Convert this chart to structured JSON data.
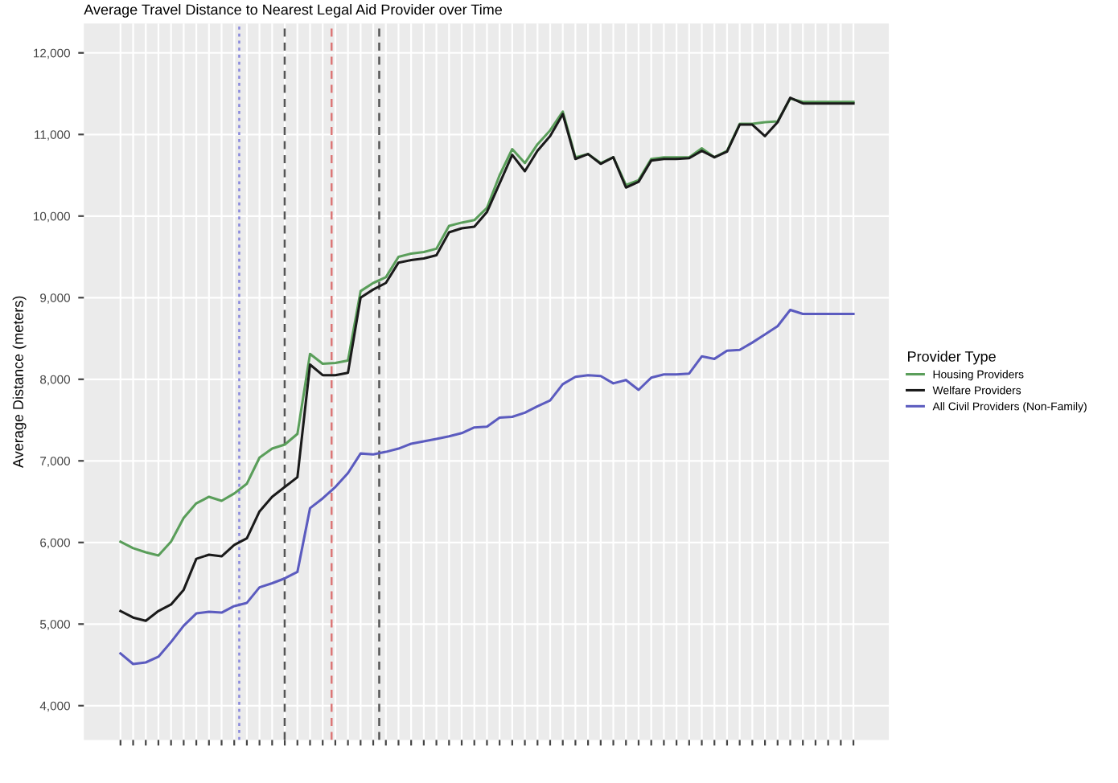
{
  "chart_data": {
    "type": "line",
    "title": "Average Travel Distance to Nearest Legal Aid Provider over Time",
    "ylabel": "Average Distance (meters)",
    "legend_title": "Provider Type",
    "categories": [
      null,
      null,
      null,
      null,
      null,
      null,
      null,
      null,
      null,
      null,
      null,
      null,
      null,
      null,
      null,
      null,
      null,
      null,
      null,
      null,
      null,
      null,
      null,
      null,
      null,
      null,
      null,
      null,
      null,
      null,
      null,
      null,
      null,
      null,
      null,
      null,
      null,
      null,
      null,
      null,
      null,
      null,
      null,
      null,
      null,
      null,
      null,
      null,
      null,
      null,
      null,
      null,
      null,
      null,
      null,
      null,
      null,
      null,
      null
    ],
    "ylim": [
      3580,
      12360
    ],
    "yticks": [
      {
        "value": 4000,
        "label": "4,000"
      },
      {
        "value": 5000,
        "label": "5,000"
      },
      {
        "value": 6000,
        "label": "6,000"
      },
      {
        "value": 7000,
        "label": "7,000"
      },
      {
        "value": 8000,
        "label": "8,000"
      },
      {
        "value": 9000,
        "label": "9,000"
      },
      {
        "value": 10000,
        "label": "10,000"
      },
      {
        "value": 11000,
        "label": "11,000"
      },
      {
        "value": 12000,
        "label": "12,000"
      }
    ],
    "grid": true,
    "legend": "right",
    "line_style": "solid",
    "marker": "none",
    "series": [
      {
        "name": "Housing Providers",
        "color": "#5a9e5a",
        "values": [
          6010,
          5930,
          5880,
          5840,
          6010,
          6300,
          6480,
          6560,
          6510,
          6600,
          6720,
          7040,
          7150,
          7200,
          7330,
          8310,
          8190,
          8200,
          8230,
          9080,
          9180,
          9250,
          9500,
          9540,
          9560,
          9600,
          9880,
          9920,
          9950,
          10100,
          10500,
          10820,
          10650,
          10880,
          11050,
          11280,
          10720,
          10760,
          10650,
          10720,
          10380,
          10440,
          10700,
          10720,
          10720,
          10720,
          10830,
          10720,
          10800,
          11130,
          11130,
          11150,
          11160,
          11440,
          11400,
          11400,
          11400,
          11400,
          11400
        ]
      },
      {
        "name": "Welfare Providers",
        "color": "#1a1a1a",
        "values": [
          5160,
          5080,
          5040,
          5160,
          5240,
          5420,
          5800,
          5850,
          5830,
          5970,
          6050,
          6380,
          6560,
          6680,
          6800,
          8180,
          8050,
          8050,
          8080,
          9000,
          9100,
          9180,
          9430,
          9460,
          9480,
          9520,
          9800,
          9850,
          9870,
          10050,
          10400,
          10750,
          10550,
          10800,
          10980,
          11250,
          10700,
          10760,
          10640,
          10720,
          10350,
          10420,
          10680,
          10700,
          10700,
          10710,
          10800,
          10720,
          10790,
          11120,
          11120,
          10980,
          11150,
          11450,
          11380,
          11380,
          11380,
          11380,
          11380
        ]
      },
      {
        "name": "All Civil Providers (Non-Family)",
        "color": "#5b5bbf",
        "values": [
          4640,
          4510,
          4530,
          4600,
          4780,
          4980,
          5130,
          5150,
          5140,
          5220,
          5260,
          5450,
          5500,
          5560,
          5640,
          6420,
          6540,
          6680,
          6850,
          7090,
          7080,
          7110,
          7150,
          7210,
          7240,
          7270,
          7300,
          7340,
          7410,
          7420,
          7530,
          7540,
          7590,
          7670,
          7740,
          7940,
          8030,
          8050,
          8040,
          7950,
          7990,
          7870,
          8020,
          8060,
          8060,
          8070,
          8280,
          8250,
          8350,
          8360,
          8450,
          8550,
          8650,
          8850,
          8800,
          8800,
          8800,
          8800,
          8800
        ]
      }
    ]
  }
}
